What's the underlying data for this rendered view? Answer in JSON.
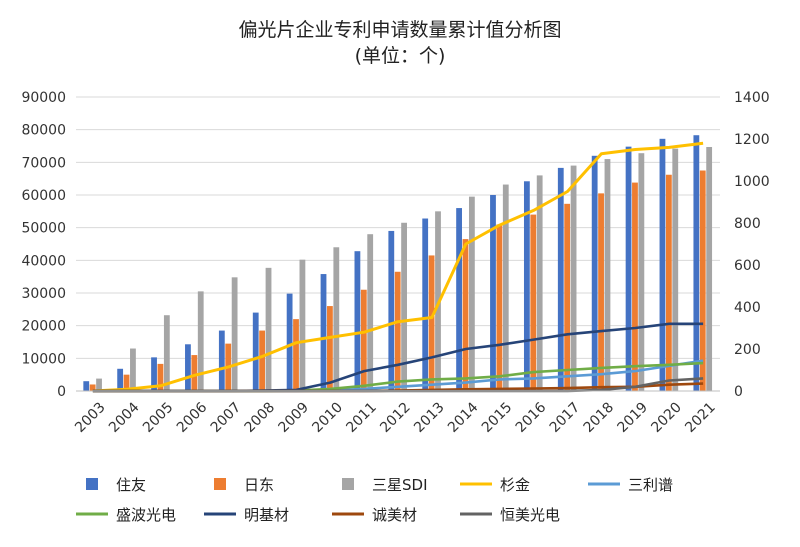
{
  "chart_data": {
    "type": "bar",
    "title": "偏光片企业专利申请数量累计值分析图",
    "subtitle": "(单位：个)",
    "categories": [
      "2003",
      "2004",
      "2005",
      "2006",
      "2007",
      "2008",
      "2009",
      "2010",
      "2011",
      "2012",
      "2013",
      "2014",
      "2015",
      "2016",
      "2017",
      "2018",
      "2019",
      "2020",
      "2021"
    ],
    "y_left": {
      "lim": [
        0,
        90000
      ],
      "ticks": [
        "0",
        "10000",
        "20000",
        "30000",
        "40000",
        "50000",
        "60000",
        "70000",
        "80000",
        "90000"
      ]
    },
    "y_right": {
      "lim": [
        0,
        1400
      ],
      "ticks": [
        "0",
        "200",
        "400",
        "600",
        "800",
        "1000",
        "1200",
        "1400"
      ]
    },
    "grid": true,
    "legend_position": "bottom",
    "bar_series": [
      {
        "name": "住友",
        "color": "#4472C4",
        "axis": "left",
        "values": [
          3000,
          6800,
          10300,
          14300,
          18500,
          24000,
          29800,
          35800,
          42800,
          49000,
          52800,
          56000,
          60000,
          64200,
          68300,
          72000,
          74800,
          77200,
          78300
        ]
      },
      {
        "name": "日东",
        "color": "#ED7D31",
        "axis": "left",
        "values": [
          2000,
          5000,
          8300,
          11000,
          14500,
          18500,
          22000,
          26000,
          31000,
          36500,
          41500,
          46500,
          51000,
          54000,
          57300,
          60500,
          63800,
          66200,
          67500
        ]
      },
      {
        "name": "三星SDI",
        "color": "#A5A5A5",
        "axis": "left",
        "values": [
          3800,
          13000,
          23200,
          30500,
          34800,
          37700,
          40200,
          44000,
          48000,
          51500,
          55000,
          59500,
          63200,
          66000,
          69000,
          71000,
          72800,
          74200,
          74700
        ]
      }
    ],
    "line_series": [
      {
        "name": "杉金",
        "color": "#FFC000",
        "axis": "right",
        "values": [
          0,
          8,
          25,
          75,
          115,
          165,
          230,
          255,
          280,
          330,
          350,
          700,
          790,
          860,
          950,
          1130,
          1150,
          1160,
          1180
        ]
      },
      {
        "name": "三利谱",
        "color": "#5B9BD5",
        "axis": "right",
        "values": [
          0,
          0,
          0,
          0,
          0,
          0,
          0,
          3,
          10,
          20,
          30,
          40,
          55,
          60,
          70,
          80,
          95,
          120,
          145
        ]
      },
      {
        "name": "盛波光电",
        "color": "#70AD47",
        "axis": "right",
        "values": [
          0,
          0,
          0,
          0,
          0,
          0,
          2,
          10,
          25,
          45,
          55,
          60,
          70,
          90,
          100,
          110,
          118,
          125,
          133
        ]
      },
      {
        "name": "明基材",
        "color": "#264478",
        "axis": "right",
        "values": [
          0,
          0,
          0,
          0,
          0,
          2,
          5,
          40,
          95,
          125,
          160,
          200,
          220,
          245,
          270,
          285,
          300,
          320,
          320
        ]
      },
      {
        "name": "诚美材",
        "color": "#9E480E",
        "axis": "right",
        "values": [
          0,
          0,
          0,
          0,
          0,
          0,
          0,
          0,
          0,
          2,
          5,
          8,
          10,
          12,
          14,
          18,
          20,
          30,
          35
        ]
      },
      {
        "name": "恒美光电",
        "color": "#636363",
        "axis": "right",
        "values": [
          0,
          0,
          0,
          0,
          0,
          0,
          0,
          0,
          0,
          0,
          0,
          0,
          0,
          0,
          0,
          5,
          20,
          50,
          60
        ]
      }
    ],
    "legend": [
      {
        "label": "住友",
        "kind": "bar",
        "color": "#4472C4"
      },
      {
        "label": "日东",
        "kind": "bar",
        "color": "#ED7D31"
      },
      {
        "label": "三星SDI",
        "kind": "bar",
        "color": "#A5A5A5"
      },
      {
        "label": "杉金",
        "kind": "line",
        "color": "#FFC000"
      },
      {
        "label": "三利谱",
        "kind": "line",
        "color": "#5B9BD5"
      },
      {
        "label": "盛波光电",
        "kind": "line",
        "color": "#70AD47"
      },
      {
        "label": "明基材",
        "kind": "line",
        "color": "#264478"
      },
      {
        "label": "诚美材",
        "kind": "line",
        "color": "#9E480E"
      },
      {
        "label": "恒美光电",
        "kind": "line",
        "color": "#636363"
      }
    ]
  }
}
